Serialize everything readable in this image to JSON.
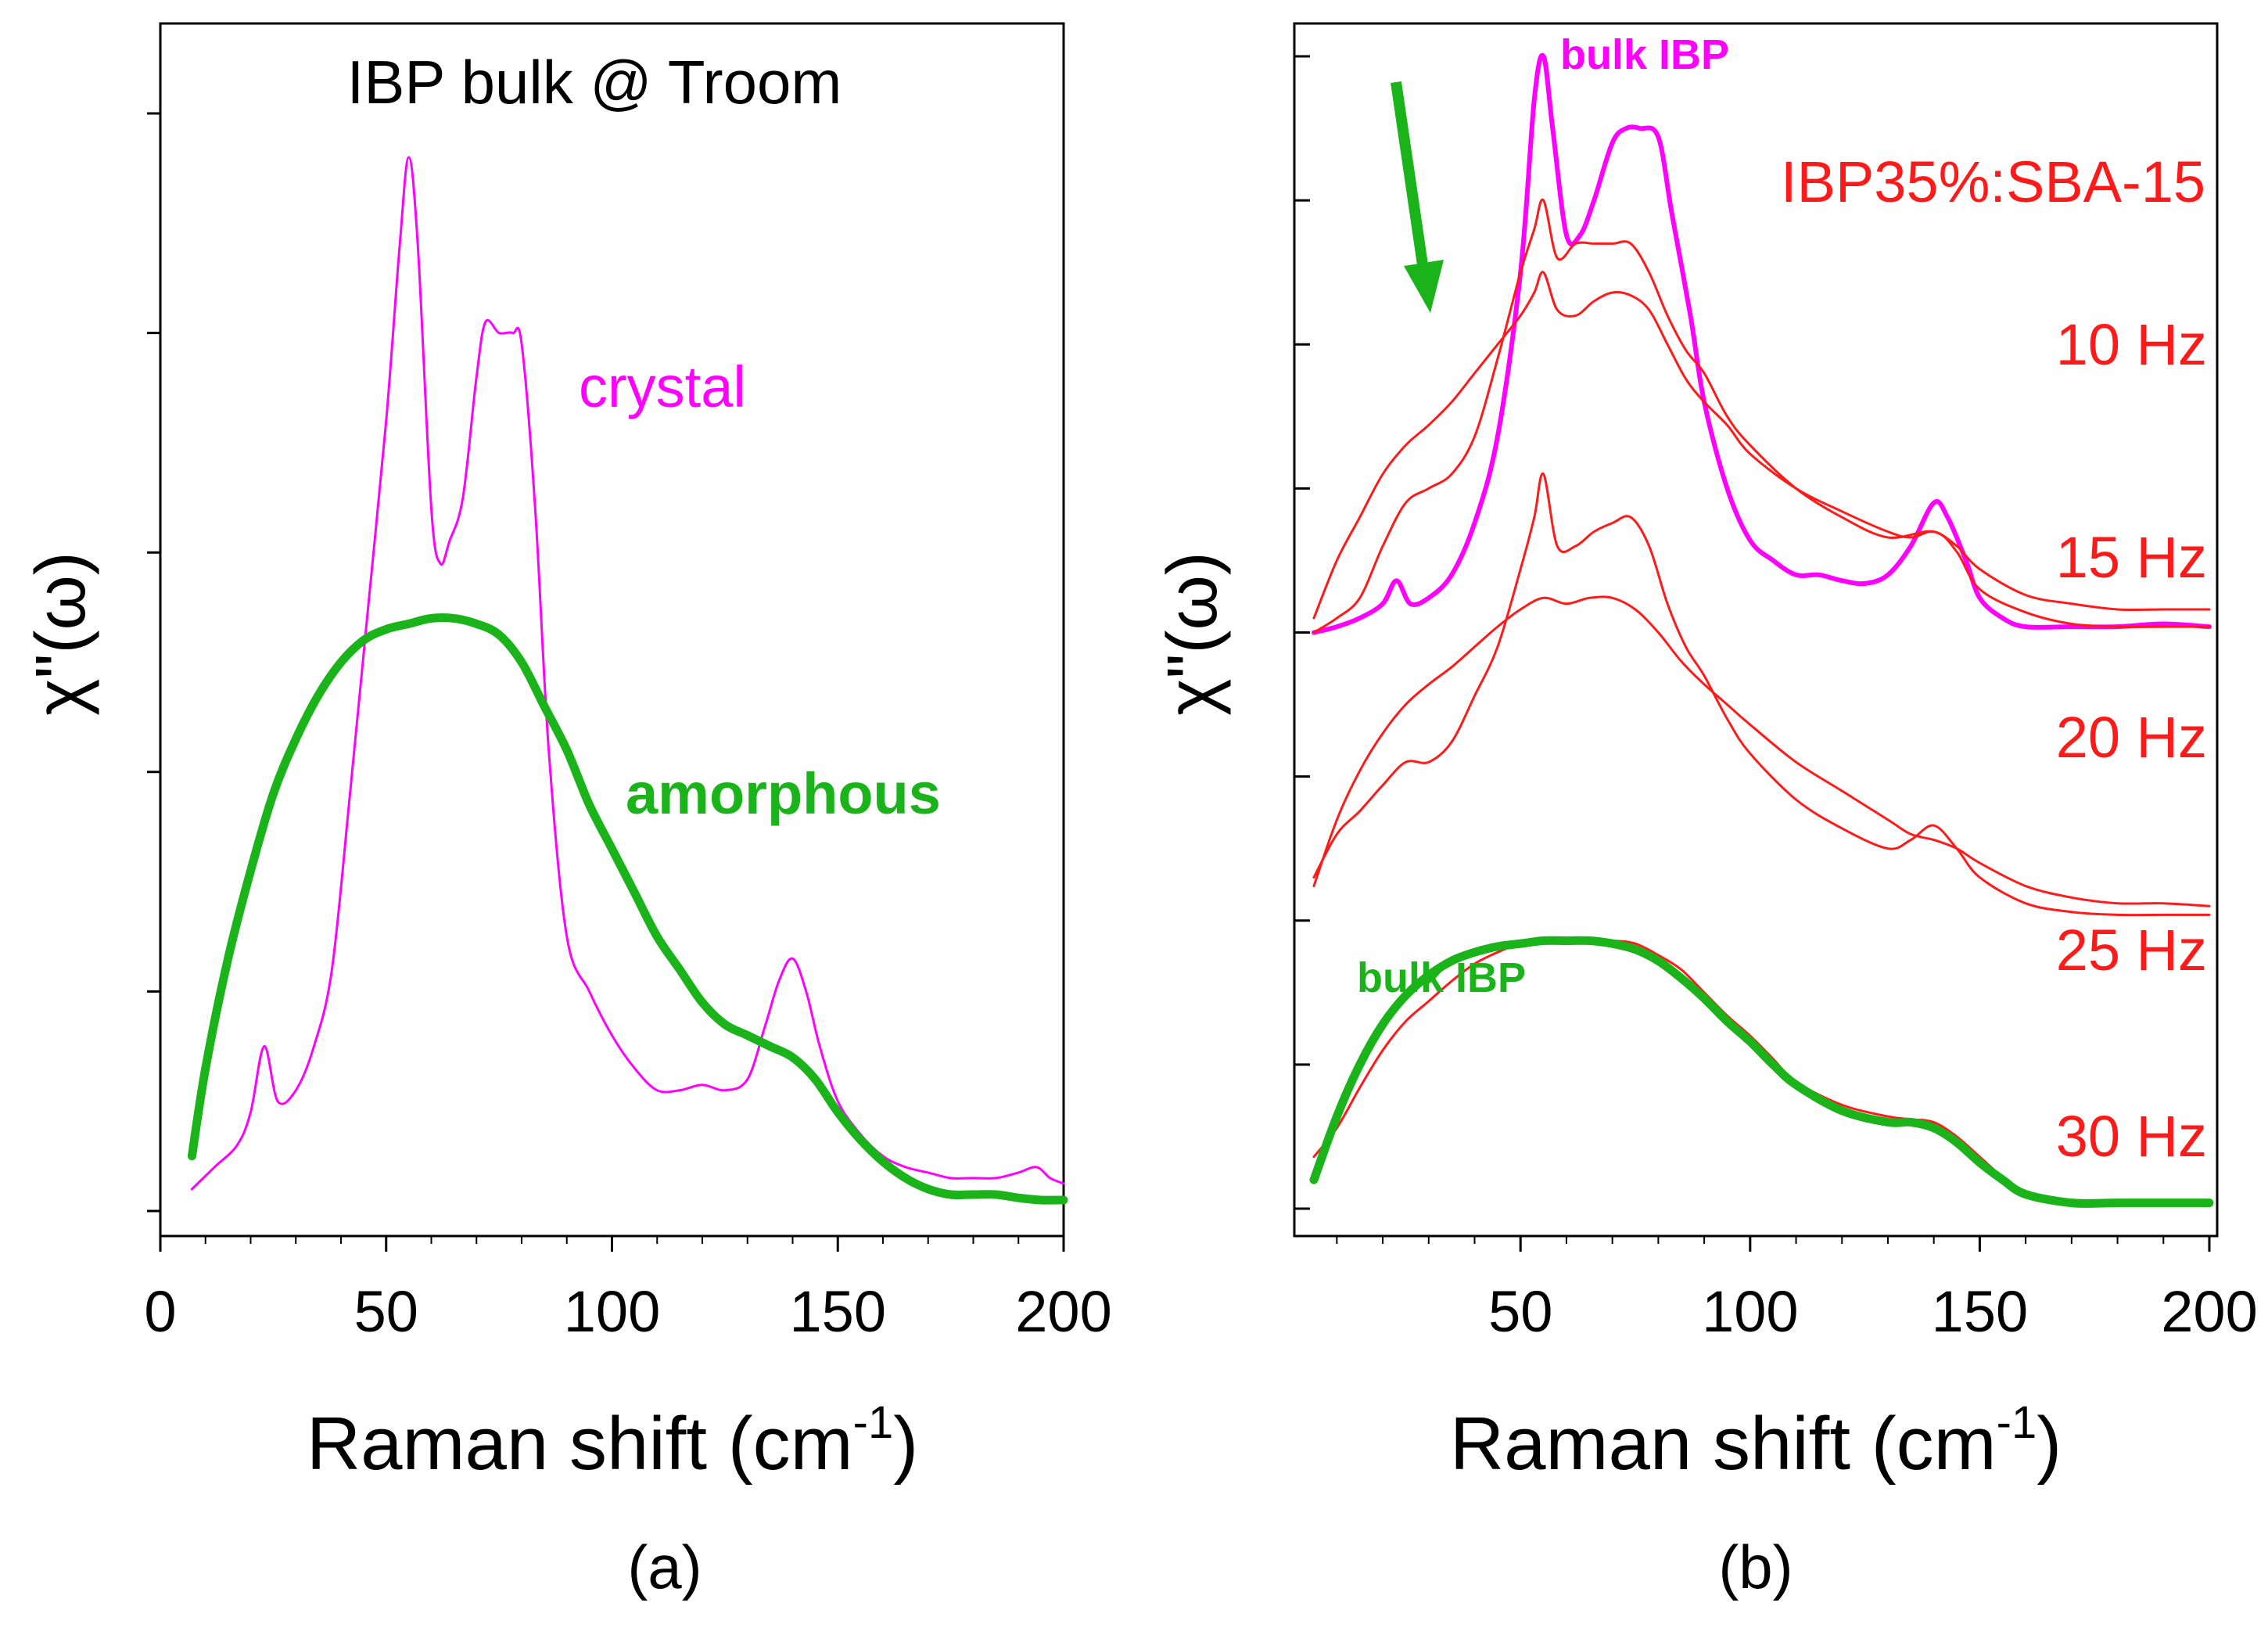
{
  "figure": {
    "panel_labels": [
      "(a)",
      "(b)"
    ]
  },
  "colors": {
    "crystal": "#ff00ff",
    "amorphous": "#1ab31a",
    "confined": "#ff1a1a",
    "axis": "#000000"
  },
  "chart_data": [
    {
      "type": "line",
      "title": "IBP bulk @ Troom",
      "xlabel": "Raman shift (cm",
      "xlabel_sup": "-1",
      "xlabel_close": ")",
      "ylabel": "χ\"(ω)",
      "xlim": [
        0,
        200
      ],
      "ylim": [
        0,
        1.0
      ],
      "xticks": [
        0,
        50,
        100,
        150,
        200
      ],
      "xtick_labels": [
        "0",
        "50",
        "100",
        "150",
        "200"
      ],
      "legend": [
        {
          "label": "crystal",
          "series": "crystal"
        },
        {
          "label": "amorphous",
          "series": "amorphous"
        }
      ],
      "series": [
        {
          "name": "crystal",
          "x": [
            7,
            12,
            17,
            20,
            23,
            26,
            30,
            34,
            38,
            42,
            46,
            50,
            53,
            55,
            57,
            60,
            62,
            64,
            67,
            70,
            72,
            75,
            78,
            80,
            83,
            86,
            90,
            95,
            100,
            105,
            110,
            115,
            120,
            125,
            130,
            134,
            137,
            140,
            143,
            146,
            150,
            155,
            160,
            165,
            170,
            175,
            180,
            185,
            190,
            194,
            197,
            200
          ],
          "y": [
            0.02,
            0.04,
            0.06,
            0.09,
            0.15,
            0.1,
            0.11,
            0.15,
            0.22,
            0.38,
            0.55,
            0.72,
            0.88,
            0.96,
            0.88,
            0.64,
            0.59,
            0.61,
            0.65,
            0.76,
            0.81,
            0.8,
            0.8,
            0.79,
            0.64,
            0.42,
            0.25,
            0.2,
            0.16,
            0.13,
            0.11,
            0.11,
            0.115,
            0.11,
            0.12,
            0.17,
            0.21,
            0.23,
            0.2,
            0.15,
            0.1,
            0.07,
            0.05,
            0.04,
            0.035,
            0.03,
            0.03,
            0.03,
            0.035,
            0.04,
            0.03,
            0.025
          ]
        },
        {
          "name": "amorphous",
          "x": [
            7,
            10,
            15,
            20,
            25,
            30,
            35,
            40,
            45,
            50,
            55,
            60,
            65,
            70,
            75,
            80,
            85,
            90,
            95,
            100,
            105,
            110,
            115,
            120,
            125,
            130,
            135,
            140,
            145,
            150,
            155,
            160,
            165,
            170,
            175,
            180,
            185,
            190,
            195,
            200
          ],
          "y": [
            0.05,
            0.13,
            0.23,
            0.31,
            0.38,
            0.43,
            0.47,
            0.5,
            0.52,
            0.53,
            0.535,
            0.54,
            0.54,
            0.535,
            0.525,
            0.5,
            0.46,
            0.42,
            0.37,
            0.33,
            0.29,
            0.25,
            0.22,
            0.19,
            0.17,
            0.16,
            0.15,
            0.14,
            0.12,
            0.09,
            0.065,
            0.045,
            0.03,
            0.02,
            0.015,
            0.015,
            0.015,
            0.012,
            0.01,
            0.01
          ]
        }
      ]
    },
    {
      "type": "line",
      "title": "IBP35%:SBA-15",
      "xlabel": "Raman shift (cm",
      "xlabel_sup": "-1",
      "xlabel_close": ")",
      "ylabel": "χ\"(ω)",
      "xlim": [
        5,
        200
      ],
      "ylim": [
        0,
        4.0
      ],
      "xticks": [
        50,
        100,
        150,
        200
      ],
      "xtick_labels": [
        "50",
        "100",
        "150",
        "200"
      ],
      "annotations": [
        "bulk IBP",
        "bulk IBP"
      ],
      "series": [
        {
          "name": "bulk IBP (crystal)",
          "offset": 2.0,
          "x": [
            5,
            10,
            15,
            20,
            23,
            26,
            30,
            35,
            40,
            45,
            50,
            53,
            55,
            57,
            60,
            63,
            66,
            70,
            73,
            76,
            80,
            83,
            87,
            90,
            95,
            100,
            105,
            110,
            115,
            120,
            125,
            130,
            135,
            140,
            143,
            147,
            150,
            155,
            160,
            170,
            180,
            190,
            200
          ],
          "y": [
            0.0,
            0.02,
            0.05,
            0.1,
            0.18,
            0.1,
            0.12,
            0.2,
            0.38,
            0.68,
            1.25,
            1.85,
            2.0,
            1.75,
            1.38,
            1.38,
            1.5,
            1.7,
            1.75,
            1.75,
            1.72,
            1.45,
            1.1,
            0.8,
            0.5,
            0.32,
            0.25,
            0.2,
            0.2,
            0.18,
            0.17,
            0.2,
            0.3,
            0.45,
            0.4,
            0.25,
            0.12,
            0.05,
            0.02,
            0.02,
            0.02,
            0.03,
            0.02
          ]
        },
        {
          "name": "10 Hz",
          "offset": 2.0,
          "x": [
            5,
            10,
            15,
            20,
            25,
            30,
            35,
            40,
            45,
            50,
            53,
            55,
            58,
            62,
            66,
            70,
            74,
            78,
            82,
            86,
            90,
            95,
            100,
            110,
            120,
            130,
            140,
            145,
            150,
            160,
            170,
            180,
            190,
            200
          ],
          "y": [
            0.0,
            0.05,
            0.12,
            0.3,
            0.45,
            0.5,
            0.55,
            0.68,
            0.95,
            1.25,
            1.4,
            1.5,
            1.3,
            1.35,
            1.35,
            1.35,
            1.35,
            1.25,
            1.1,
            0.98,
            0.9,
            0.75,
            0.65,
            0.5,
            0.4,
            0.33,
            0.35,
            0.28,
            0.15,
            0.07,
            0.03,
            0.02,
            0.02,
            0.02
          ]
        },
        {
          "name": "15 Hz",
          "offset": 1.0,
          "x": [
            5,
            10,
            15,
            20,
            25,
            30,
            35,
            40,
            45,
            50,
            53,
            55,
            58,
            62,
            66,
            70,
            74,
            78,
            82,
            86,
            90,
            95,
            100,
            110,
            120,
            130,
            135,
            140,
            145,
            150,
            160,
            170,
            180,
            190,
            200
          ],
          "y": [
            0.15,
            0.3,
            0.38,
            0.47,
            0.55,
            0.55,
            0.62,
            0.78,
            0.95,
            1.22,
            1.4,
            1.55,
            1.3,
            1.3,
            1.35,
            1.38,
            1.4,
            1.3,
            1.1,
            0.95,
            0.85,
            0.7,
            0.58,
            0.42,
            0.32,
            0.25,
            0.28,
            0.33,
            0.25,
            0.15,
            0.06,
            0.03,
            0.02,
            0.02,
            0.02
          ]
        },
        {
          "name": "20 Hz",
          "offset": 0.0,
          "x": [
            5,
            10,
            15,
            20,
            25,
            30,
            35,
            40,
            45,
            50,
            53,
            55,
            58,
            62,
            66,
            70,
            74,
            78,
            82,
            86,
            90,
            95,
            100,
            110,
            120,
            130,
            135,
            140,
            145,
            150,
            160,
            170,
            180,
            190,
            200
          ],
          "y": [
            2.05,
            2.25,
            2.4,
            2.55,
            2.65,
            2.72,
            2.8,
            2.9,
            3.0,
            3.1,
            3.18,
            3.25,
            3.12,
            3.1,
            3.15,
            3.18,
            3.17,
            3.12,
            3.0,
            2.88,
            2.8,
            2.72,
            2.62,
            2.5,
            2.42,
            2.35,
            2.33,
            2.35,
            2.3,
            2.22,
            2.13,
            2.1,
            2.08,
            2.08,
            2.08
          ]
        },
        {
          "name": "25 Hz",
          "offset": 0.0,
          "x": [
            5,
            10,
            15,
            20,
            25,
            30,
            35,
            40,
            45,
            50,
            55,
            60,
            65,
            70,
            75,
            80,
            85,
            90,
            95,
            100,
            110,
            120,
            130,
            135,
            140,
            145,
            150,
            160,
            170,
            180,
            190,
            200
          ],
          "y": [
            1.12,
            1.35,
            1.52,
            1.65,
            1.75,
            1.82,
            1.88,
            1.95,
            2.02,
            2.08,
            2.12,
            2.1,
            2.12,
            2.12,
            2.08,
            2.0,
            1.9,
            1.82,
            1.75,
            1.68,
            1.55,
            1.45,
            1.35,
            1.3,
            1.28,
            1.25,
            1.2,
            1.12,
            1.08,
            1.06,
            1.06,
            1.05
          ]
        },
        {
          "name": "30 Hz",
          "offset": 0.0,
          "x": [
            5,
            10,
            15,
            20,
            25,
            30,
            35,
            40,
            45,
            50,
            55,
            60,
            65,
            70,
            75,
            80,
            85,
            90,
            95,
            100,
            105,
            110,
            120,
            130,
            135,
            140,
            145,
            150,
            155,
            160,
            170,
            180,
            190,
            200
          ],
          "y": [
            0.18,
            0.28,
            0.42,
            0.55,
            0.65,
            0.72,
            0.79,
            0.85,
            0.89,
            0.92,
            0.93,
            0.93,
            0.93,
            0.93,
            0.92,
            0.88,
            0.83,
            0.75,
            0.67,
            0.6,
            0.52,
            0.44,
            0.36,
            0.32,
            0.31,
            0.3,
            0.25,
            0.18,
            0.11,
            0.06,
            0.03,
            0.02,
            0.02,
            0.02
          ]
        },
        {
          "name": "bulk IBP (amorphous)",
          "offset": 0.0,
          "x": [
            5,
            10,
            15,
            20,
            25,
            30,
            35,
            40,
            45,
            50,
            55,
            60,
            65,
            70,
            75,
            80,
            85,
            90,
            95,
            100,
            105,
            110,
            120,
            130,
            135,
            140,
            145,
            150,
            155,
            160,
            170,
            180,
            190,
            200
          ],
          "y": [
            0.1,
            0.32,
            0.5,
            0.64,
            0.74,
            0.81,
            0.86,
            0.89,
            0.91,
            0.92,
            0.93,
            0.93,
            0.93,
            0.92,
            0.9,
            0.86,
            0.8,
            0.73,
            0.65,
            0.58,
            0.5,
            0.43,
            0.34,
            0.3,
            0.3,
            0.28,
            0.23,
            0.16,
            0.1,
            0.05,
            0.02,
            0.02,
            0.02,
            0.02
          ]
        }
      ],
      "curve_labels": [
        "10 Hz",
        "15 Hz",
        "20 Hz",
        "25 Hz",
        "30 Hz"
      ]
    }
  ]
}
